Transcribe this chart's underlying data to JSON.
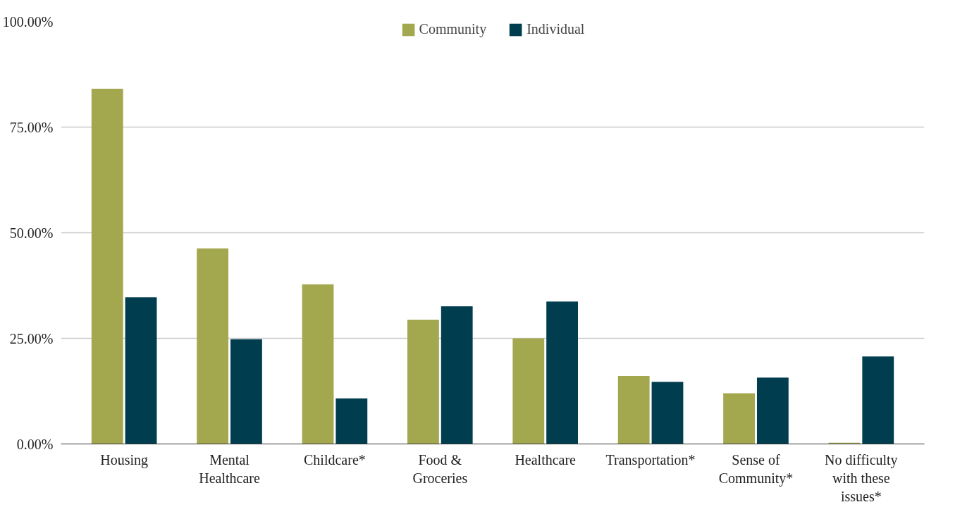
{
  "chart_data": {
    "type": "bar",
    "categories": [
      "Housing",
      "Mental\nHealthcare",
      "Childcare*",
      "Food &\nGroceries",
      "Healthcare",
      "Transportation*",
      "Sense of\nCommunity*",
      "No difficulty\nwith these\nissues*"
    ],
    "series": [
      {
        "name": "Community",
        "color": "#a3a84f",
        "values": [
          84.1,
          46.3,
          37.8,
          29.4,
          25.0,
          16.1,
          12.0,
          0.3
        ]
      },
      {
        "name": "Individual",
        "color": "#003d4f",
        "values": [
          34.7,
          24.8,
          10.8,
          32.6,
          33.7,
          14.7,
          15.7,
          20.7
        ]
      }
    ],
    "ylim": [
      0,
      100
    ],
    "yticks": [
      {
        "value": 0,
        "label": "0.00%"
      },
      {
        "value": 25,
        "label": "25.00%"
      },
      {
        "value": 50,
        "label": "50.00%"
      },
      {
        "value": 75,
        "label": "75.00%"
      },
      {
        "value": 100,
        "label": "100.00%"
      }
    ],
    "grid": "y",
    "legend": "top"
  }
}
